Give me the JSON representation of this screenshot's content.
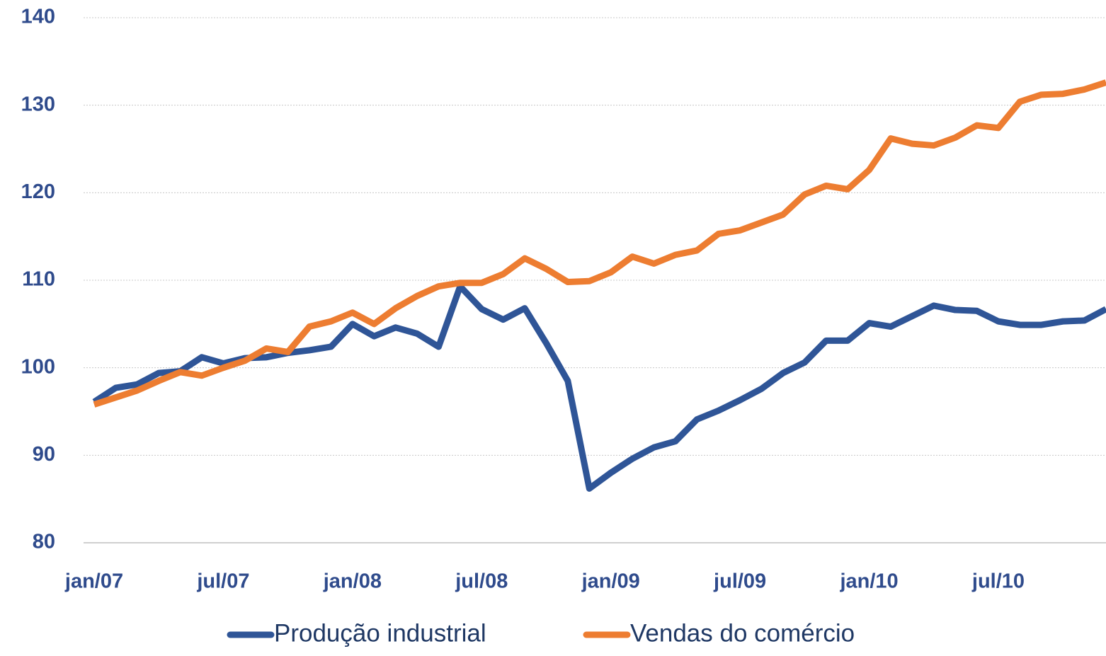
{
  "chart_data": {
    "type": "line",
    "categories": [
      "jan/07",
      null,
      null,
      null,
      null,
      null,
      "jul/07",
      null,
      null,
      null,
      null,
      null,
      "jan/08",
      null,
      null,
      null,
      null,
      null,
      "jul/08",
      null,
      null,
      null,
      null,
      null,
      "jan/09",
      null,
      null,
      null,
      null,
      null,
      "jul/09",
      null,
      null,
      null,
      null,
      null,
      "jan/10",
      null,
      null,
      null,
      null,
      null,
      "jul/10",
      null,
      null,
      null,
      null,
      null
    ],
    "series": [
      {
        "name": "Produção industrial",
        "color": "#2f5597",
        "values": [
          96.1,
          97.7,
          98.1,
          99.4,
          99.6,
          101.2,
          100.5,
          101.1,
          101.2,
          101.7,
          102.0,
          102.4,
          105.0,
          103.6,
          104.6,
          103.9,
          102.4,
          109.3,
          106.7,
          105.5,
          106.8,
          102.8,
          98.5,
          86.2,
          88.0,
          89.6,
          90.9,
          91.6,
          94.1,
          95.1,
          96.3,
          97.6,
          99.4,
          100.6,
          103.1,
          103.1,
          105.1,
          104.7,
          105.9,
          107.1,
          106.6,
          106.5,
          105.3,
          104.9,
          104.9,
          105.3,
          105.4,
          106.7
        ]
      },
      {
        "name": "Vendas do comércio",
        "color": "#ed7d31",
        "values": [
          95.8,
          96.6,
          97.4,
          98.5,
          99.5,
          99.1,
          100.0,
          100.8,
          102.2,
          101.8,
          104.7,
          105.3,
          106.3,
          105.0,
          106.8,
          108.2,
          109.3,
          109.7,
          109.7,
          110.7,
          112.5,
          111.3,
          109.8,
          109.9,
          110.9,
          112.7,
          111.9,
          112.9,
          113.4,
          115.3,
          115.7,
          116.6,
          117.5,
          119.8,
          120.8,
          120.4,
          122.6,
          126.2,
          125.6,
          125.4,
          126.3,
          127.7,
          127.4,
          130.4,
          131.2,
          131.3,
          131.8,
          132.6
        ]
      }
    ],
    "ylim": [
      80,
      140
    ],
    "yticks": [
      80,
      90,
      100,
      110,
      120,
      130,
      140
    ],
    "grid": true,
    "legend": "bottom"
  }
}
